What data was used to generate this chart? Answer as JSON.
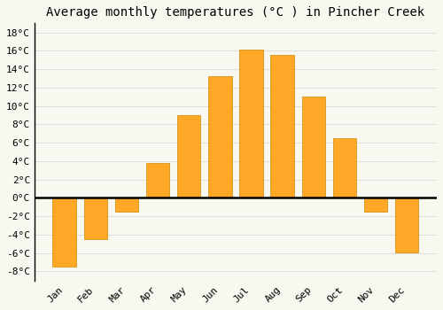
{
  "months": [
    "Jan",
    "Feb",
    "Mar",
    "Apr",
    "May",
    "Jun",
    "Jul",
    "Aug",
    "Sep",
    "Oct",
    "Nov",
    "Dec"
  ],
  "temperatures": [
    -7.5,
    -4.5,
    -1.5,
    3.8,
    9.0,
    13.2,
    16.1,
    15.6,
    11.0,
    6.5,
    -1.5,
    -5.9
  ],
  "bar_color": "#FFA726",
  "bar_edge_color": "#CC8800",
  "title": "Average monthly temperatures (°C ) in Pincher Creek",
  "ylim": [
    -9,
    19
  ],
  "yticks": [
    -8,
    -6,
    -4,
    -2,
    0,
    2,
    4,
    6,
    8,
    10,
    12,
    14,
    16,
    18
  ],
  "ytick_labels": [
    "-8°C",
    "-6°C",
    "-4°C",
    "-2°C",
    "0°C",
    "2°C",
    "4°C",
    "6°C",
    "8°C",
    "10°C",
    "12°C",
    "14°C",
    "16°C",
    "18°C"
  ],
  "background_color": "#F8F8F0",
  "grid_color": "#DDDDDD",
  "title_fontsize": 10,
  "tick_fontsize": 8,
  "font_family": "monospace"
}
